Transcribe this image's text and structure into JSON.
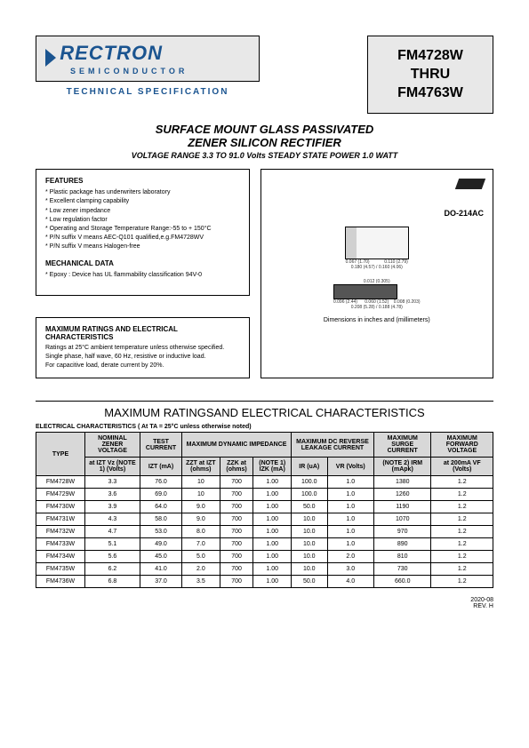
{
  "header": {
    "logo_name": "RECTRON",
    "logo_sub": "SEMICONDUCTOR",
    "tech_spec": "TECHNICAL SPECIFICATION"
  },
  "part_number": {
    "line1": "FM4728W",
    "line2": "THRU",
    "line3": "FM4763W"
  },
  "title": {
    "line1": "SURFACE MOUNT GLASS PASSIVATED",
    "line2": "ZENER SILICON RECTIFIER",
    "subtitle": "VOLTAGE RANGE 3.3 TO 91.0 Volts  STEADY STATE POWER 1.0 WATT"
  },
  "features": {
    "heading": "FEATURES",
    "items": [
      "Plastic package has underwriters laboratory",
      "Excellent clamping capability",
      "Low zener impedance",
      "Low regulation factor",
      "Operating and Storage Temperature Range:-55 to + 150°C",
      "P/N suffix V means AEC-Q101 qualified,e.g.FM4728WV",
      "P/N suffix V means Halogen-free"
    ]
  },
  "mechanical": {
    "heading": "MECHANICAL DATA",
    "items": [
      "Epoxy : Device has UL flammability classification 94V-0"
    ]
  },
  "package": {
    "name": "DO-214AC",
    "dims_note": "Dimensions in inches and (millimeters)"
  },
  "ratings_box": {
    "heading": "MAXIMUM RATINGS AND ELECTRICAL CHARACTERISTICS",
    "lines": [
      "Ratings at 25°C ambient temperature unless otherwise specified.",
      "Single phase, half wave, 60 Hz, resistive or inductive load.",
      "For capacitive load, derate current by 20%."
    ]
  },
  "section_title": "MAXIMUM RATINGSAND ELECTRICAL CHARACTERISTICS",
  "table_note": "ELECTRICAL CHARACTERISTICS ( At TA = 25°C unless otherwise noted)",
  "table": {
    "group_headers": {
      "type": "TYPE",
      "nominal": "NOMINAL ZENER VOLTAGE",
      "test": "TEST CURRENT",
      "maxdyn": "MAXIMUM DYNAMIC IMPEDANCE",
      "maxdc": "MAXIMUM DC REVERSE LEAKAGE CURRENT",
      "surge": "MAXIMUM SURGE CURRENT",
      "forward": "MAXIMUM FORWARD VOLTAGE"
    },
    "sub_headers": {
      "vz": "at IZT Vz (NOTE 1) (Volts)",
      "izt": "IZT (mA)",
      "zzt": "ZZT at IZT (ohms)",
      "zzk": "ZZK at (ohms)",
      "izk": "(NOTE 1) IZK (mA)",
      "ir": "IR (uA)",
      "vr": "VR (Volts)",
      "irm": "(NOTE 2) IRM (mApk)",
      "vf": "at 200mA VF (Volts)"
    },
    "rows": [
      {
        "type": "FM4728W",
        "vz": "3.3",
        "izt": "76.0",
        "zzt": "10",
        "zzk": "700",
        "izk": "1.00",
        "ir": "100.0",
        "vr": "1.0",
        "irm": "1380",
        "vf": "1.2"
      },
      {
        "type": "FM4729W",
        "vz": "3.6",
        "izt": "69.0",
        "zzt": "10",
        "zzk": "700",
        "izk": "1.00",
        "ir": "100.0",
        "vr": "1.0",
        "irm": "1260",
        "vf": "1.2"
      },
      {
        "type": "FM4730W",
        "vz": "3.9",
        "izt": "64.0",
        "zzt": "9.0",
        "zzk": "700",
        "izk": "1.00",
        "ir": "50.0",
        "vr": "1.0",
        "irm": "1190",
        "vf": "1.2"
      },
      {
        "type": "FM4731W",
        "vz": "4.3",
        "izt": "58.0",
        "zzt": "9.0",
        "zzk": "700",
        "izk": "1.00",
        "ir": "10.0",
        "vr": "1.0",
        "irm": "1070",
        "vf": "1.2"
      },
      {
        "type": "FM4732W",
        "vz": "4.7",
        "izt": "53.0",
        "zzt": "8.0",
        "zzk": "700",
        "izk": "1.00",
        "ir": "10.0",
        "vr": "1.0",
        "irm": "970",
        "vf": "1.2"
      },
      {
        "type": "FM4733W",
        "vz": "5.1",
        "izt": "49.0",
        "zzt": "7.0",
        "zzk": "700",
        "izk": "1.00",
        "ir": "10.0",
        "vr": "1.0",
        "irm": "890",
        "vf": "1.2"
      },
      {
        "type": "FM4734W",
        "vz": "5.6",
        "izt": "45.0",
        "zzt": "5.0",
        "zzk": "700",
        "izk": "1.00",
        "ir": "10.0",
        "vr": "2.0",
        "irm": "810",
        "vf": "1.2"
      },
      {
        "type": "FM4735W",
        "vz": "6.2",
        "izt": "41.0",
        "zzt": "2.0",
        "zzk": "700",
        "izk": "1.00",
        "ir": "10.0",
        "vr": "3.0",
        "irm": "730",
        "vf": "1.2"
      },
      {
        "type": "FM4736W",
        "vz": "6.8",
        "izt": "37.0",
        "zzt": "3.5",
        "zzk": "700",
        "izk": "1.00",
        "ir": "50.0",
        "vr": "4.0",
        "irm": "660.0",
        "vf": "1.2"
      }
    ]
  },
  "footer": {
    "date": "2020-08",
    "rev": "REV. H"
  },
  "colors": {
    "accent": "#1a5490",
    "header_bg": "#d8d8d8",
    "box_bg": "#e8e8e8"
  }
}
